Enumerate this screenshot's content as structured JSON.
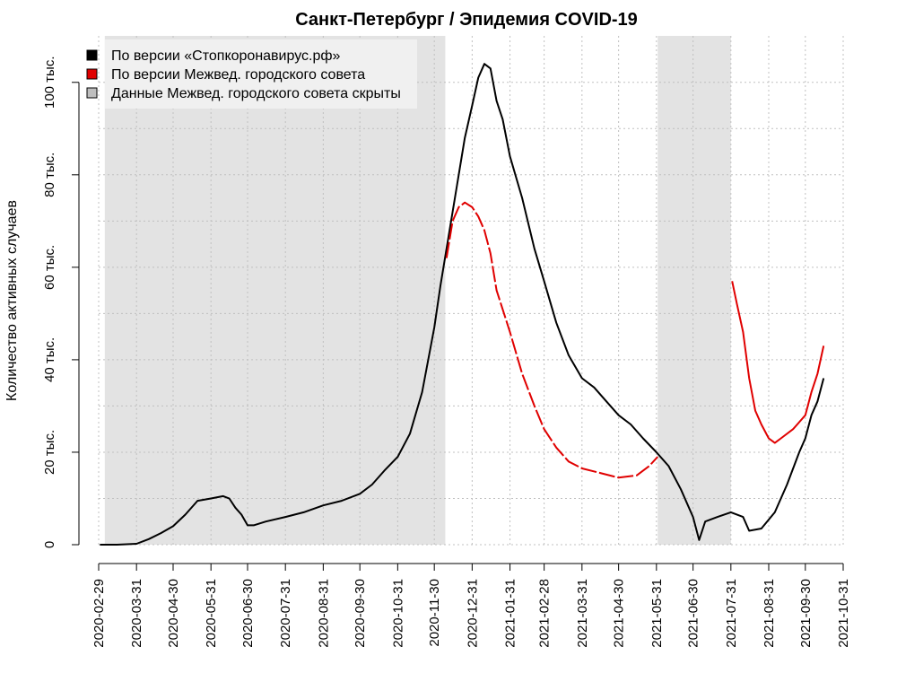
{
  "chart_data": {
    "type": "line",
    "title": "Санкт-Петербург / Эпидемия COVID-19",
    "xlabel": "",
    "ylabel": "Количество активных случаев",
    "x_range": [
      "2020-02-29",
      "2021-10-31"
    ],
    "ylim": [
      0,
      105000
    ],
    "x_ticks": [
      "2020-02-29",
      "2020-03-31",
      "2020-04-30",
      "2020-05-31",
      "2020-06-30",
      "2020-07-31",
      "2020-08-31",
      "2020-09-30",
      "2020-10-31",
      "2020-11-30",
      "2020-12-31",
      "2021-01-31",
      "2021-02-28",
      "2021-03-31",
      "2021-04-30",
      "2021-05-31",
      "2021-06-30",
      "2021-07-31",
      "2021-08-31",
      "2021-09-30",
      "2021-10-31"
    ],
    "y_ticks": [
      {
        "value": 0,
        "label": "0"
      },
      {
        "value": 20000,
        "label": "20 тыс."
      },
      {
        "value": 40000,
        "label": "40 тыс."
      },
      {
        "value": 60000,
        "label": "60 тыс."
      },
      {
        "value": 80000,
        "label": "80 тыс."
      },
      {
        "value": 100000,
        "label": "100 тыс."
      }
    ],
    "grid": true,
    "legend_position": "top-left",
    "shaded_periods": [
      {
        "from": "2020-03-05",
        "to": "2020-12-09"
      },
      {
        "from": "2021-06-01",
        "to": "2021-07-31"
      }
    ],
    "legend": [
      {
        "label": "По версии «Стопкоронавирус.рф»",
        "color": "#000000"
      },
      {
        "label": "По версии Межвед. городского совета",
        "color": "#e00000"
      },
      {
        "label": "Данные Межвед. городского совета скрыты",
        "color": "#bebebe"
      }
    ],
    "series": [
      {
        "name": "По версии «Стопкоронавирус.рф»",
        "color": "#000000",
        "dashed": false,
        "points": [
          [
            "2020-03-01",
            0
          ],
          [
            "2020-03-15",
            0
          ],
          [
            "2020-03-31",
            200
          ],
          [
            "2020-04-10",
            1200
          ],
          [
            "2020-04-20",
            2500
          ],
          [
            "2020-04-30",
            4000
          ],
          [
            "2020-05-10",
            6500
          ],
          [
            "2020-05-20",
            9500
          ],
          [
            "2020-05-31",
            10000
          ],
          [
            "2020-06-10",
            10500
          ],
          [
            "2020-06-15",
            10000
          ],
          [
            "2020-06-20",
            8000
          ],
          [
            "2020-06-25",
            6500
          ],
          [
            "2020-06-30",
            4200
          ],
          [
            "2020-07-05",
            4200
          ],
          [
            "2020-07-15",
            5000
          ],
          [
            "2020-07-31",
            6000
          ],
          [
            "2020-08-15",
            7000
          ],
          [
            "2020-08-31",
            8500
          ],
          [
            "2020-09-15",
            9500
          ],
          [
            "2020-09-30",
            11000
          ],
          [
            "2020-10-10",
            13000
          ],
          [
            "2020-10-20",
            16000
          ],
          [
            "2020-10-31",
            19000
          ],
          [
            "2020-11-10",
            24000
          ],
          [
            "2020-11-20",
            33000
          ],
          [
            "2020-11-30",
            47000
          ],
          [
            "2020-12-05",
            56000
          ],
          [
            "2020-12-10",
            64000
          ],
          [
            "2020-12-15",
            72000
          ],
          [
            "2020-12-20",
            80000
          ],
          [
            "2020-12-25",
            88000
          ],
          [
            "2020-12-31",
            95000
          ],
          [
            "2021-01-05",
            101000
          ],
          [
            "2021-01-10",
            104000
          ],
          [
            "2021-01-15",
            103000
          ],
          [
            "2021-01-20",
            96000
          ],
          [
            "2021-01-25",
            92000
          ],
          [
            "2021-01-31",
            84000
          ],
          [
            "2021-02-10",
            75000
          ],
          [
            "2021-02-20",
            64000
          ],
          [
            "2021-02-28",
            57000
          ],
          [
            "2021-03-10",
            48000
          ],
          [
            "2021-03-20",
            41000
          ],
          [
            "2021-03-31",
            36000
          ],
          [
            "2021-04-10",
            34000
          ],
          [
            "2021-04-20",
            31000
          ],
          [
            "2021-04-30",
            28000
          ],
          [
            "2021-05-10",
            26000
          ],
          [
            "2021-05-20",
            23000
          ],
          [
            "2021-05-31",
            20000
          ],
          [
            "2021-06-10",
            17000
          ],
          [
            "2021-06-20",
            12000
          ],
          [
            "2021-06-30",
            6000
          ],
          [
            "2021-07-05",
            1000
          ],
          [
            "2021-07-10",
            5000
          ],
          [
            "2021-07-20",
            6000
          ],
          [
            "2021-07-31",
            7000
          ],
          [
            "2021-08-10",
            6000
          ],
          [
            "2021-08-15",
            3000
          ],
          [
            "2021-08-25",
            3500
          ],
          [
            "2021-09-05",
            7000
          ],
          [
            "2021-09-15",
            13000
          ],
          [
            "2021-09-25",
            20000
          ],
          [
            "2021-09-30",
            23000
          ],
          [
            "2021-10-05",
            28000
          ],
          [
            "2021-10-10",
            31000
          ],
          [
            "2021-10-15",
            36000
          ]
        ]
      },
      {
        "name": "По версии Межвед. городского совета",
        "color": "#e00000",
        "dashed": true,
        "points": [
          [
            "2020-12-10",
            62000
          ],
          [
            "2020-12-15",
            70000
          ],
          [
            "2020-12-20",
            73000
          ],
          [
            "2020-12-25",
            74000
          ],
          [
            "2020-12-31",
            73000
          ],
          [
            "2021-01-05",
            71000
          ],
          [
            "2021-01-10",
            68000
          ],
          [
            "2021-01-15",
            63000
          ],
          [
            "2021-01-20",
            55000
          ],
          [
            "2021-01-31",
            46000
          ],
          [
            "2021-02-10",
            37000
          ],
          [
            "2021-02-20",
            30000
          ],
          [
            "2021-02-28",
            25000
          ],
          [
            "2021-03-10",
            21000
          ],
          [
            "2021-03-20",
            18000
          ],
          [
            "2021-03-31",
            16500
          ],
          [
            "2021-04-15",
            15500
          ],
          [
            "2021-04-30",
            14500
          ],
          [
            "2021-05-15",
            15000
          ],
          [
            "2021-05-25",
            17000
          ],
          [
            "2021-06-01",
            19000
          ]
        ]
      },
      {
        "name": "По версии Межвед. городского совета",
        "color": "#e00000",
        "dashed": false,
        "points": [
          [
            "2021-08-01",
            57000
          ],
          [
            "2021-08-05",
            52000
          ],
          [
            "2021-08-10",
            46000
          ],
          [
            "2021-08-15",
            36000
          ],
          [
            "2021-08-20",
            29000
          ],
          [
            "2021-08-25",
            26000
          ],
          [
            "2021-08-31",
            23000
          ],
          [
            "2021-09-05",
            22000
          ],
          [
            "2021-09-10",
            23000
          ],
          [
            "2021-09-20",
            25000
          ],
          [
            "2021-09-30",
            28000
          ],
          [
            "2021-10-05",
            33000
          ],
          [
            "2021-10-10",
            37000
          ],
          [
            "2021-10-15",
            43000
          ]
        ]
      }
    ]
  }
}
